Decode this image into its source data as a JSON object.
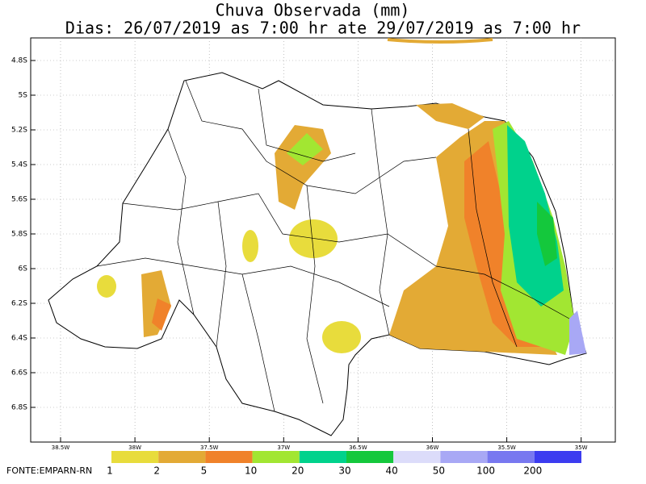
{
  "title": [
    "Chuva Observada (mm)",
    "Dias: 26/07/2019 as 7:00 hr ate 29/07/2019 as 7:00 hr"
  ],
  "lat_labels": [
    "4.8S",
    "5S",
    "5.2S",
    "5.4S",
    "5.6S",
    "5.8S",
    "6S",
    "6.2S",
    "6.4S",
    "6.6S",
    "6.8S"
  ],
  "lon_labels": [
    "38.5W",
    "38W",
    "37.5W",
    "37W",
    "36.5W",
    "36W",
    "35.5W",
    "35W"
  ],
  "legend": {
    "labels": [
      "1",
      "2",
      "5",
      "10",
      "20",
      "30",
      "40",
      "50",
      "100",
      "200"
    ],
    "colors": [
      "#e8dc3c",
      "#e3aa35",
      "#f0822a",
      "#a2e632",
      "#00d28c",
      "#14c83c",
      "#dcdcfa",
      "#a8a8f5",
      "#7878f0",
      "#3c3cf0"
    ]
  },
  "source": "FONTE:EMPARN-RN"
}
